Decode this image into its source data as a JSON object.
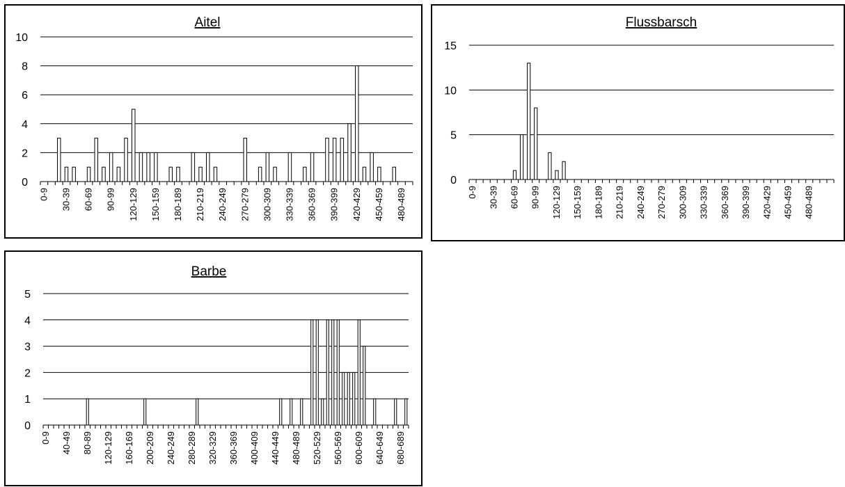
{
  "chart_data": [
    {
      "type": "bar",
      "title": "Aitel",
      "xlabel": "",
      "ylabel": "",
      "ylim": [
        0,
        10
      ],
      "yticks": [
        0,
        2,
        4,
        6,
        8,
        10
      ],
      "grid": true,
      "categories": [
        "0-9",
        "10-19",
        "20-29",
        "30-39",
        "40-49",
        "50-59",
        "60-69",
        "70-79",
        "80-89",
        "90-99",
        "100-109",
        "110-119",
        "120-129",
        "130-139",
        "140-149",
        "150-159",
        "160-169",
        "170-179",
        "180-189",
        "190-199",
        "200-209",
        "210-219",
        "220-229",
        "230-239",
        "240-249",
        "250-259",
        "260-269",
        "270-279",
        "280-289",
        "290-299",
        "300-309",
        "310-319",
        "320-329",
        "330-339",
        "340-349",
        "350-359",
        "360-369",
        "370-379",
        "380-389",
        "390-399",
        "400-409",
        "410-419",
        "420-429",
        "430-439",
        "440-449",
        "450-459",
        "460-469",
        "470-479",
        "480-489",
        "490-499"
      ],
      "shown_tick_labels": [
        "0-9",
        "30-39",
        "60-69",
        "90-99",
        "120-129",
        "150-159",
        "180-189",
        "210-219",
        "240-249",
        "270-279",
        "300-309",
        "330-339",
        "360-369",
        "390-399",
        "420-429",
        "450-459",
        "480-489"
      ],
      "values": [
        0,
        0,
        3,
        1,
        1,
        0,
        1,
        3,
        1,
        2,
        1,
        3,
        5,
        2,
        2,
        2,
        0,
        1,
        1,
        0,
        2,
        1,
        2,
        1,
        0,
        0,
        0,
        3,
        0,
        1,
        2,
        1,
        0,
        2,
        0,
        1,
        2,
        0,
        3,
        3,
        3,
        4,
        8,
        1,
        2,
        1,
        0,
        1,
        0,
        0
      ]
    },
    {
      "type": "bar",
      "title": "Flussbarsch",
      "xlabel": "",
      "ylabel": "",
      "ylim": [
        0,
        15
      ],
      "yticks": [
        0,
        5,
        10,
        15
      ],
      "grid": true,
      "categories": [
        "0-9",
        "10-19",
        "20-29",
        "30-39",
        "40-49",
        "50-59",
        "60-69",
        "70-79",
        "80-89",
        "90-99",
        "100-109",
        "110-119",
        "120-129",
        "130-139",
        "140-149",
        "150-159",
        "160-169",
        "170-179",
        "180-189",
        "190-199",
        "200-209",
        "210-219",
        "220-229",
        "230-239",
        "240-249",
        "250-259",
        "260-269",
        "270-279",
        "280-289",
        "290-299",
        "300-309",
        "310-319",
        "320-329",
        "330-339",
        "340-349",
        "350-359",
        "360-369",
        "370-379",
        "380-389",
        "390-399",
        "400-409",
        "410-419",
        "420-429",
        "430-439",
        "440-449",
        "450-459",
        "460-469",
        "470-479",
        "480-489",
        "490-499",
        "500-509",
        "510-519"
      ],
      "shown_tick_labels": [
        "0-9",
        "30-39",
        "60-69",
        "90-99",
        "120-129",
        "150-159",
        "180-189",
        "210-219",
        "240-249",
        "270-279",
        "300-309",
        "330-339",
        "360-369",
        "390-399",
        "420-429",
        "450-459",
        "480-489"
      ],
      "values": [
        0,
        0,
        0,
        0,
        0,
        0,
        1,
        5,
        13,
        8,
        0,
        3,
        1,
        2,
        0,
        0,
        0,
        0,
        0,
        0,
        0,
        0,
        0,
        0,
        0,
        0,
        0,
        0,
        0,
        0,
        0,
        0,
        0,
        0,
        0,
        0,
        0,
        0,
        0,
        0,
        0,
        0,
        0,
        0,
        0,
        0,
        0,
        0,
        0,
        0,
        0,
        0
      ]
    },
    {
      "type": "bar",
      "title": "Barbe",
      "xlabel": "",
      "ylabel": "",
      "ylim": [
        0,
        5
      ],
      "yticks": [
        0,
        1,
        2,
        3,
        4,
        5
      ],
      "grid": true,
      "categories": [
        "0-9",
        "10-19",
        "20-29",
        "30-39",
        "40-49",
        "50-59",
        "60-69",
        "70-79",
        "80-89",
        "90-99",
        "100-109",
        "110-119",
        "120-129",
        "130-139",
        "140-149",
        "150-159",
        "160-169",
        "170-179",
        "180-189",
        "190-199",
        "200-209",
        "210-219",
        "220-229",
        "230-239",
        "240-249",
        "250-259",
        "260-269",
        "270-279",
        "280-289",
        "290-299",
        "300-309",
        "310-319",
        "320-329",
        "330-339",
        "340-349",
        "350-359",
        "360-369",
        "370-379",
        "380-389",
        "390-399",
        "400-409",
        "410-419",
        "420-429",
        "430-439",
        "440-449",
        "450-459",
        "460-469",
        "470-479",
        "480-489",
        "490-499",
        "500-509",
        "510-519",
        "520-529",
        "530-539",
        "540-549",
        "550-559",
        "560-569",
        "570-579",
        "580-589",
        "590-599",
        "600-609",
        "610-619",
        "620-629",
        "630-639",
        "640-649",
        "650-659",
        "660-669",
        "670-679",
        "680-689",
        "690-699"
      ],
      "shown_tick_labels": [
        "0-9",
        "40-49",
        "80-89",
        "120-129",
        "160-169",
        "200-209",
        "240-249",
        "280-289",
        "320-329",
        "360-369",
        "400-409",
        "440-449",
        "480-489",
        "520-529",
        "560-569",
        "600-609",
        "640-649",
        "680-689"
      ],
      "values": [
        0,
        0,
        0,
        0,
        0,
        0,
        0,
        0,
        1,
        0,
        0,
        0,
        0,
        0,
        0,
        0,
        0,
        0,
        0,
        1,
        0,
        0,
        0,
        0,
        0,
        0,
        0,
        0,
        0,
        1,
        0,
        0,
        0,
        0,
        0,
        0,
        0,
        0,
        0,
        0,
        0,
        0,
        0,
        0,
        0,
        1,
        0,
        1,
        0,
        1,
        0,
        4,
        4,
        1,
        4,
        4,
        4,
        2,
        2,
        2,
        4,
        3,
        0,
        1,
        0,
        0,
        0,
        1,
        0,
        1
      ]
    }
  ]
}
